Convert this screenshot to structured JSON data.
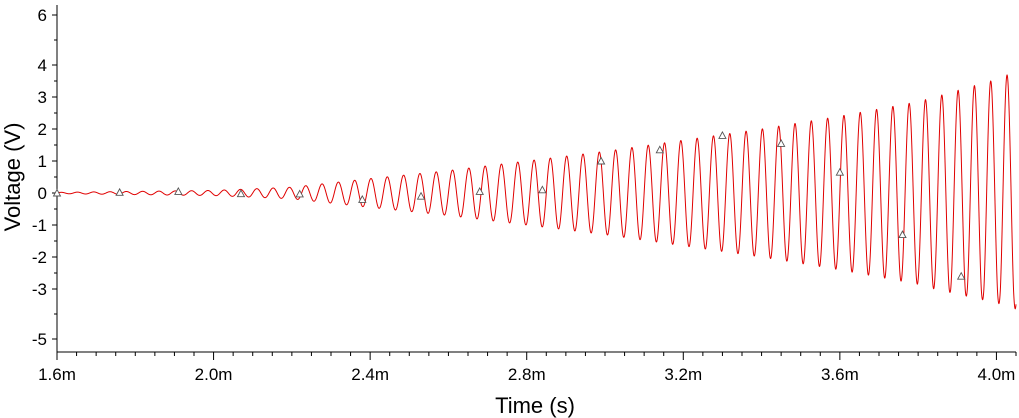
{
  "chart_data": {
    "type": "line",
    "xlabel": "Time (s)",
    "ylabel": "Voltage (V)",
    "xlim": [
      0.0016,
      0.00405
    ],
    "ylim": [
      -5.4,
      6.0
    ],
    "x_ticks": [
      {
        "value": 0.0016,
        "label": "1.6m"
      },
      {
        "value": 0.002,
        "label": "2.0m"
      },
      {
        "value": 0.0024,
        "label": "2.4m"
      },
      {
        "value": 0.0028,
        "label": "2.8m"
      },
      {
        "value": 0.0032,
        "label": "3.2m"
      },
      {
        "value": 0.0036,
        "label": "3.6m"
      },
      {
        "value": 0.004,
        "label": "4.0m"
      }
    ],
    "y_ticks": [
      {
        "value": 6,
        "label": "6"
      },
      {
        "value": 4,
        "label": "4"
      },
      {
        "value": 3,
        "label": "3"
      },
      {
        "value": 2,
        "label": "2"
      },
      {
        "value": 1,
        "label": "1"
      },
      {
        "value": 0,
        "label": "0"
      },
      {
        "value": -1,
        "label": "-1"
      },
      {
        "value": -2,
        "label": "-2"
      },
      {
        "value": -3,
        "label": "-3"
      },
      {
        "value": -5,
        "label": "-5"
      }
    ],
    "grid": false,
    "series": [
      {
        "color": "#e00000",
        "marker": "triangle-open",
        "oscillation_frequency_hz": 24000,
        "envelope_time_s": [
          0.0016,
          0.002,
          0.0022,
          0.0024,
          0.0026,
          0.0028,
          0.003,
          0.0032,
          0.0034,
          0.0036,
          0.0038,
          0.004,
          0.00405
        ],
        "envelope_amplitude_v": [
          0.02,
          0.08,
          0.18,
          0.45,
          0.7,
          1.0,
          1.3,
          1.65,
          2.0,
          2.4,
          2.85,
          3.55,
          3.8
        ],
        "marker_points": [
          {
            "x": 0.0016,
            "y": 0.0
          },
          {
            "x": 0.00176,
            "y": 0.02
          },
          {
            "x": 0.00191,
            "y": 0.05
          },
          {
            "x": 0.00207,
            "y": -0.02
          },
          {
            "x": 0.00222,
            "y": -0.03
          },
          {
            "x": 0.00238,
            "y": -0.2
          },
          {
            "x": 0.00253,
            "y": -0.1
          },
          {
            "x": 0.00268,
            "y": 0.05
          },
          {
            "x": 0.00284,
            "y": 0.1
          },
          {
            "x": 0.00299,
            "y": 1.0
          },
          {
            "x": 0.00314,
            "y": 1.35
          },
          {
            "x": 0.0033,
            "y": 1.8
          },
          {
            "x": 0.00345,
            "y": 1.55
          },
          {
            "x": 0.0036,
            "y": 0.65
          },
          {
            "x": 0.00376,
            "y": -1.3
          },
          {
            "x": 0.00391,
            "y": -2.6
          }
        ]
      }
    ]
  }
}
